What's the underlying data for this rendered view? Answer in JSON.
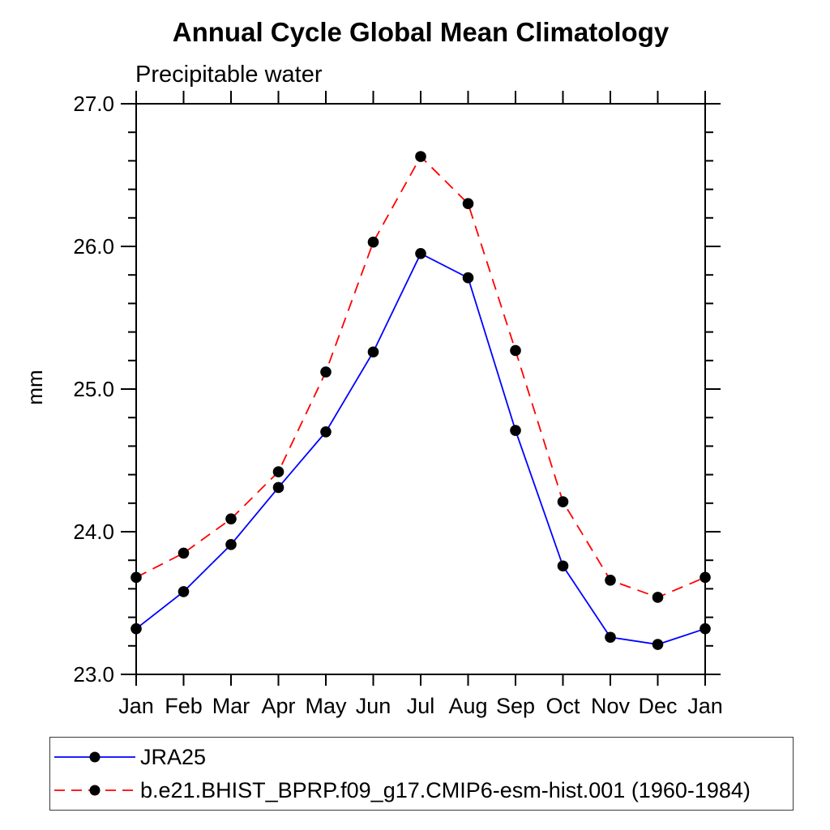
{
  "header": {
    "title": "Annual Cycle Global Mean Climatology"
  },
  "chart_data": {
    "type": "line",
    "title": "Annual Cycle Global Mean Climatology",
    "left_axis_title": "Precipitable water",
    "ylabel": "mm",
    "xlabel": "",
    "categories": [
      "Jan",
      "Feb",
      "Mar",
      "Apr",
      "May",
      "Jun",
      "Jul",
      "Aug",
      "Sep",
      "Oct",
      "Nov",
      "Dec",
      "Jan"
    ],
    "series": [
      {
        "name": "JRA25",
        "color": "#0000ff",
        "line_style": "solid",
        "marker": "filled-circle",
        "marker_color": "#000000",
        "values": [
          23.32,
          23.58,
          23.91,
          24.31,
          24.7,
          25.26,
          25.95,
          25.78,
          24.71,
          23.76,
          23.26,
          23.21,
          23.32
        ]
      },
      {
        "name": "b.e21.BHIST_BPRP.f09_g17.CMIP6-esm-hist.001 (1960-1984)",
        "color": "#ff0000",
        "line_style": "dashed",
        "marker": "filled-circle",
        "marker_color": "#000000",
        "values": [
          23.68,
          23.85,
          24.09,
          24.42,
          25.12,
          26.03,
          26.63,
          26.3,
          25.27,
          24.21,
          23.66,
          23.54,
          23.68
        ]
      }
    ],
    "ylim": [
      23.0,
      27.0
    ],
    "ytick_major": [
      23.0,
      24.0,
      25.0,
      26.0,
      27.0
    ],
    "ytick_labels": [
      "23.0",
      "24.0",
      "25.0",
      "26.0",
      "27.0"
    ],
    "y_minor_step": 0.2,
    "grid": false,
    "legend_position": "bottom-left",
    "frame_color": "#000000"
  }
}
